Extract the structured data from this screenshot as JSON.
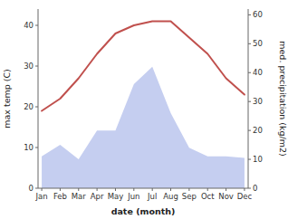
{
  "chart_data": {
    "type": "line",
    "categories": [
      "Jan",
      "Feb",
      "Mar",
      "Apr",
      "May",
      "Jun",
      "Jul",
      "Aug",
      "Sep",
      "Oct",
      "Nov",
      "Dec"
    ],
    "xlabel": "date (month)",
    "ylabel": "max temp (C)",
    "y2label": "med. precipitation (kg/m2)",
    "series": [
      {
        "type": "area",
        "axis": "y2",
        "color": "#c5cef0",
        "values": [
          11,
          15,
          10,
          20,
          20,
          36,
          42,
          26,
          14,
          11,
          11,
          10.5
        ]
      },
      {
        "type": "line",
        "color": "#c0504d",
        "values": [
          19,
          22,
          27,
          33,
          38,
          40,
          41,
          41,
          37,
          33,
          27,
          23
        ]
      }
    ],
    "ylim": [
      0,
      44
    ],
    "yticks": [
      0,
      10,
      20,
      30,
      40
    ],
    "y2lim": [
      0,
      62
    ],
    "y2ticks": [
      0,
      10,
      20,
      30,
      40,
      50,
      60
    ],
    "grid": false
  }
}
